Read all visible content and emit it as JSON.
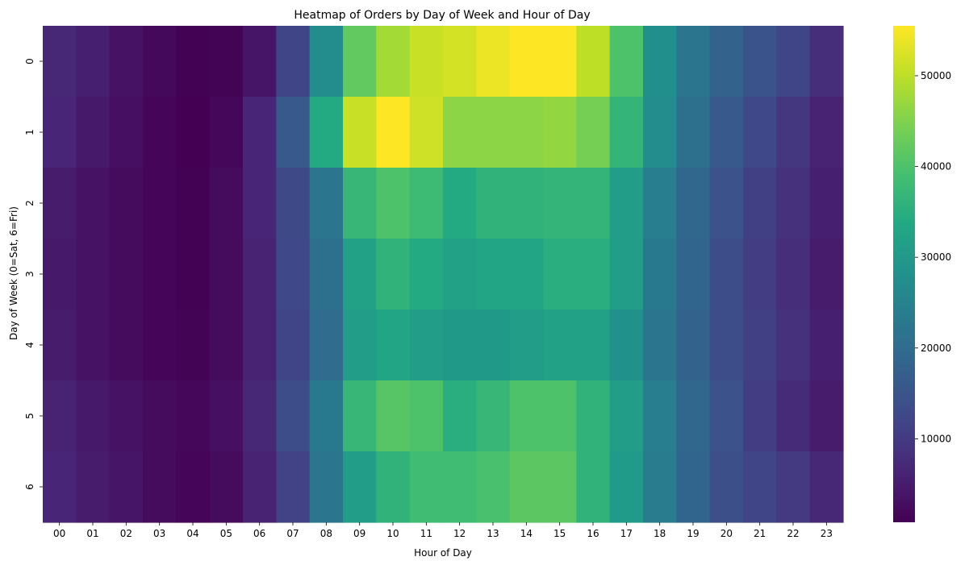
{
  "chart_data": {
    "type": "heatmap",
    "title": "Heatmap of Orders by Day of Week and Hour of Day",
    "xlabel": "Hour of Day",
    "ylabel": "Day of Week (0=Sat, 6=Fri)",
    "x": [
      "00",
      "01",
      "02",
      "03",
      "04",
      "05",
      "06",
      "07",
      "08",
      "09",
      "10",
      "11",
      "12",
      "13",
      "14",
      "15",
      "16",
      "17",
      "18",
      "19",
      "20",
      "21",
      "22",
      "23"
    ],
    "y": [
      "0",
      "1",
      "2",
      "3",
      "4",
      "5",
      "6"
    ],
    "values": [
      [
        7000,
        5500,
        3500,
        2000,
        1000,
        1200,
        4000,
        12000,
        27000,
        42000,
        48000,
        51000,
        52000,
        54000,
        55500,
        55500,
        50000,
        40000,
        28000,
        22000,
        18000,
        15000,
        12000,
        8000
      ],
      [
        6500,
        4500,
        3000,
        1500,
        800,
        1800,
        6500,
        16000,
        34000,
        51000,
        55500,
        51500,
        46000,
        46000,
        46000,
        46500,
        44000,
        36500,
        27000,
        21000,
        16000,
        12500,
        9500,
        6000
      ],
      [
        5000,
        3500,
        2500,
        1500,
        1000,
        2500,
        6500,
        13000,
        22000,
        37000,
        40000,
        38000,
        34000,
        36000,
        36000,
        36500,
        36500,
        31000,
        24000,
        19000,
        14500,
        11000,
        8500,
        5500
      ],
      [
        4500,
        3500,
        2500,
        1500,
        900,
        2500,
        6000,
        12500,
        21000,
        32000,
        36000,
        34000,
        32000,
        33000,
        33000,
        35000,
        35000,
        31000,
        23000,
        18500,
        13500,
        10500,
        8000,
        5000
      ],
      [
        5000,
        3500,
        2500,
        1500,
        1200,
        2500,
        6000,
        12000,
        20000,
        31000,
        33000,
        31000,
        30000,
        30000,
        31000,
        32000,
        32000,
        28500,
        22000,
        18000,
        13500,
        11000,
        8500,
        5500
      ],
      [
        6000,
        4500,
        3500,
        2500,
        1800,
        3000,
        7000,
        13500,
        23000,
        37000,
        41000,
        40000,
        35000,
        37000,
        40000,
        40000,
        36000,
        31000,
        24000,
        19000,
        14500,
        10500,
        7500,
        5000
      ],
      [
        6500,
        5000,
        4000,
        2500,
        1500,
        2500,
        6000,
        11500,
        22000,
        31000,
        36000,
        38500,
        38500,
        39500,
        41500,
        41500,
        36000,
        30500,
        23500,
        18500,
        14000,
        12000,
        10000,
        7000
      ]
    ],
    "colorbar": {
      "min": 800,
      "max": 55500,
      "ticks": [
        10000,
        20000,
        30000,
        40000,
        50000
      ],
      "tick_labels": [
        "10000",
        "20000",
        "30000",
        "40000",
        "50000"
      ],
      "colormap": "viridis"
    }
  }
}
